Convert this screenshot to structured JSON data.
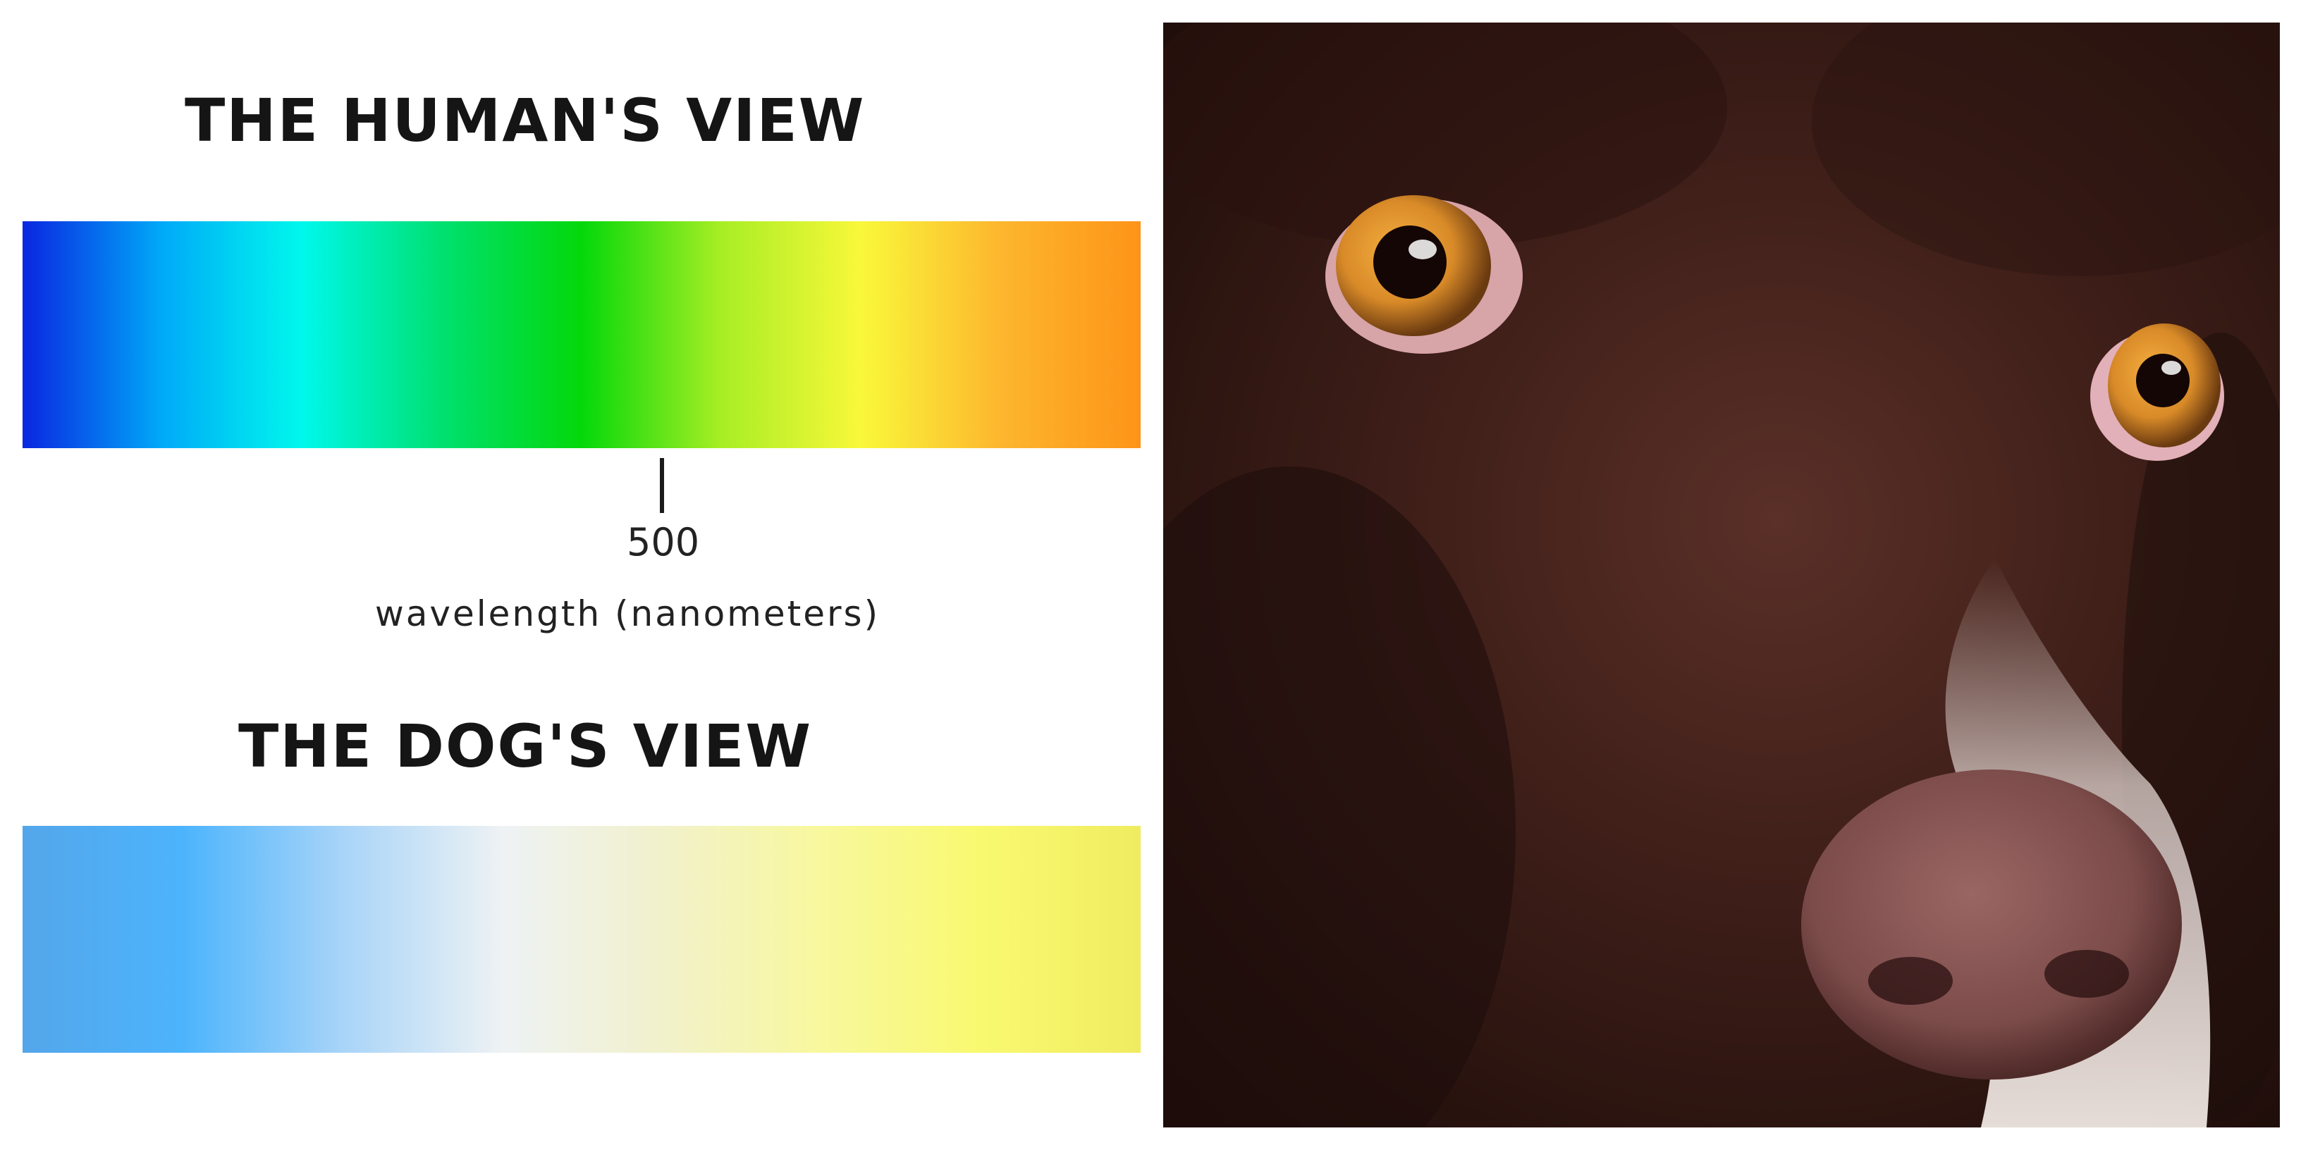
{
  "human_title": "THE HUMAN'S VIEW",
  "dog_title": "THE DOG'S VIEW",
  "axis": {
    "tick_value": "500",
    "label": "wavelength (nanometers)"
  },
  "colors": {
    "human_spectrum": [
      "#0a26e0",
      "#00aaf8",
      "#00f8ec",
      "#00e070",
      "#04d80a",
      "#a8ee24",
      "#f9f83a",
      "#fdb62e",
      "#fd9418"
    ],
    "dog_spectrum": [
      "#54a6ea",
      "#4cb4fc",
      "#a8d4f8",
      "#eef2f4",
      "#f1f1cc",
      "#f8f89e",
      "#f9f970",
      "#f0ec60"
    ],
    "fur": "#3a1c16",
    "eye": "#d88a28",
    "nose": "#7c4c4a"
  }
}
